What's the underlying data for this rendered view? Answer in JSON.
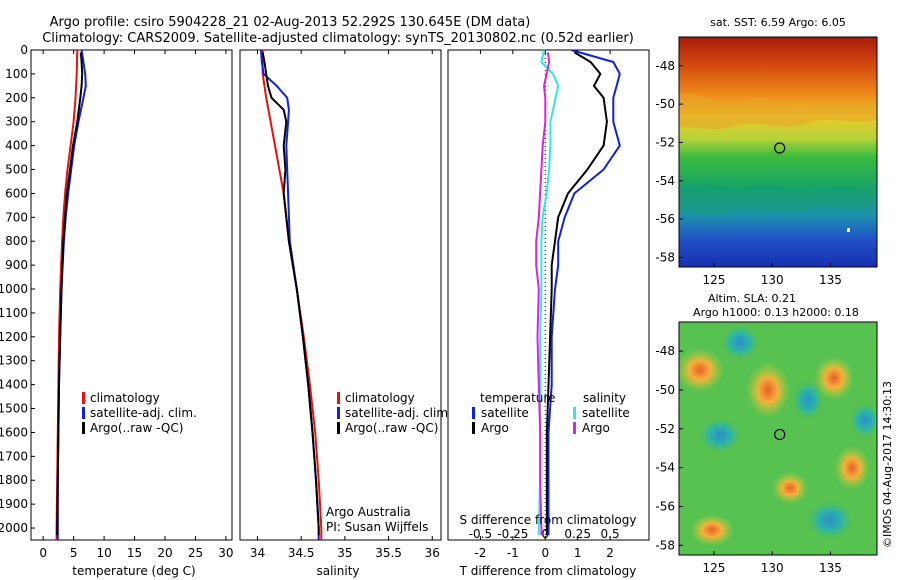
{
  "header": {
    "line1": "Argo profile: csiro 5904228_21 02-Aug-2013 52.292S 130.645E (DM data)",
    "line2": "Climatology: CARS2009. Satellite-adjusted climatology: synTS_20130802.nc (0.52d earlier)"
  },
  "colors": {
    "climatology": "#e8120c",
    "satellite": "#1020e0",
    "argo": "#000000",
    "satellite_salinity": "#2ee8e8",
    "argo_salinity": "#e020e0"
  },
  "chart_data": [
    {
      "type": "line",
      "xlabel": "temperature (deg C)",
      "ylabel": "",
      "xlim": [
        -2,
        31
      ],
      "ylim": [
        2050,
        0
      ],
      "xticks": [
        0,
        5,
        10,
        15,
        20,
        25,
        30
      ],
      "yticks": [
        0,
        100,
        200,
        300,
        400,
        500,
        600,
        700,
        800,
        900,
        1000,
        1100,
        1200,
        1300,
        1400,
        1500,
        1600,
        1700,
        1800,
        1900,
        2000
      ],
      "legend": [
        "climatology",
        "satellite-adj. clim.",
        "Argo(..raw -QC)"
      ],
      "series": [
        {
          "name": "climatology",
          "color": "#e8120c",
          "y": [
            0,
            100,
            200,
            300,
            400,
            500,
            600,
            700,
            800,
            1000,
            1200,
            1400,
            1600,
            1800,
            2000,
            2050
          ],
          "values": [
            5.6,
            5.5,
            5.3,
            5.0,
            4.5,
            4.0,
            3.6,
            3.3,
            3.1,
            2.8,
            2.6,
            2.5,
            2.4,
            2.3,
            2.2,
            2.2
          ]
        },
        {
          "name": "satellite-adj. clim.",
          "color": "#1020e0",
          "y": [
            0,
            50,
            100,
            150,
            200,
            300,
            400,
            500,
            600,
            700,
            800,
            1000,
            1200,
            1400,
            1600,
            1800,
            2000,
            2050
          ],
          "values": [
            6.3,
            6.6,
            6.9,
            7.0,
            6.6,
            5.8,
            5.1,
            4.6,
            4.1,
            3.7,
            3.4,
            3.0,
            2.8,
            2.6,
            2.5,
            2.4,
            2.4,
            2.4
          ]
        },
        {
          "name": "Argo(..raw -QC)",
          "color": "#000000",
          "y": [
            10,
            50,
            100,
            150,
            200,
            300,
            400,
            500,
            600,
            700,
            800,
            1000,
            1200,
            1400,
            1600,
            1800,
            2000,
            2030
          ],
          "values": [
            6.2,
            6.3,
            6.4,
            6.3,
            6.1,
            5.6,
            4.9,
            4.4,
            3.9,
            3.6,
            3.3,
            3.0,
            2.8,
            2.6,
            2.5,
            2.4,
            2.3,
            2.3
          ]
        }
      ]
    },
    {
      "type": "line",
      "xlabel": "salinity",
      "ylabel": "",
      "xlim": [
        33.8,
        36.1
      ],
      "ylim": [
        2050,
        0
      ],
      "xticks": [
        34,
        34.5,
        35,
        35.5,
        36
      ],
      "xticklabels": [
        "34",
        "34.5",
        "35",
        "35.5",
        "36"
      ],
      "legend": [
        "climatology",
        "satellite-adj. clim.",
        "Argo(..raw -QC)"
      ],
      "annotation": [
        "Argo Australia",
        "PI: Susan Wijffels"
      ],
      "series": [
        {
          "name": "climatology",
          "color": "#e8120c",
          "y": [
            0,
            100,
            200,
            300,
            400,
            600,
            800,
            1000,
            1200,
            1400,
            1600,
            1800,
            2000,
            2050
          ],
          "values": [
            34.06,
            34.06,
            34.1,
            34.15,
            34.2,
            34.3,
            34.36,
            34.45,
            34.53,
            34.6,
            34.66,
            34.7,
            34.73,
            34.73
          ]
        },
        {
          "name": "satellite-adj. clim.",
          "color": "#1020e0",
          "y": [
            0,
            50,
            100,
            150,
            200,
            250,
            300,
            400,
            600,
            800,
            1000,
            1200,
            1400,
            1600,
            1800,
            2000,
            2050
          ],
          "values": [
            34.04,
            34.05,
            34.07,
            34.22,
            34.34,
            34.36,
            34.35,
            34.33,
            34.35,
            34.37,
            34.45,
            34.52,
            34.58,
            34.63,
            34.67,
            34.7,
            34.7
          ]
        },
        {
          "name": "Argo(..raw -QC)",
          "color": "#000000",
          "y": [
            10,
            50,
            100,
            150,
            200,
            250,
            300,
            400,
            500,
            600,
            700,
            800,
            1000,
            1200,
            1400,
            1600,
            1800,
            2000,
            2030
          ],
          "values": [
            34.06,
            34.08,
            34.1,
            34.12,
            34.16,
            34.3,
            34.33,
            34.3,
            34.32,
            34.3,
            34.33,
            34.36,
            34.45,
            34.52,
            34.58,
            34.63,
            34.67,
            34.7,
            34.7
          ]
        }
      ]
    },
    {
      "type": "line",
      "xlabel": "T difference from climatology",
      "ylabel": "",
      "xlim": [
        -3,
        3.2
      ],
      "ylim": [
        2050,
        0
      ],
      "xticks": [
        -2,
        -1,
        0,
        1,
        2
      ],
      "top_axis_label": "S difference from climatology",
      "top_ticks": [
        "-0.5",
        "-0.25",
        "0",
        "0.25",
        "0.5"
      ],
      "legend_titles": [
        "temperature",
        "salinity"
      ],
      "legend": [
        "satellite",
        "Argo",
        "satellite",
        "Argo"
      ],
      "series": [
        {
          "name": "satellite",
          "group": "temperature",
          "color": "#1020e0",
          "y": [
            0,
            50,
            100,
            150,
            200,
            300,
            400,
            500,
            600,
            700,
            800,
            900,
            1000,
            1200,
            1400,
            1600,
            1800,
            2000,
            2030
          ],
          "values": [
            0.8,
            2.1,
            2.3,
            2.2,
            2.1,
            2.1,
            2.3,
            1.8,
            0.9,
            0.6,
            0.4,
            0.4,
            0.3,
            0.2,
            0.2,
            0.1,
            0.1,
            0.1,
            0.1
          ]
        },
        {
          "name": "Argo",
          "group": "temperature",
          "color": "#000000",
          "y": [
            10,
            50,
            100,
            150,
            200,
            300,
            400,
            500,
            600,
            700,
            800,
            900,
            1000,
            1200,
            1400,
            1600,
            1800,
            2000,
            2030
          ],
          "values": [
            0.9,
            1.4,
            1.7,
            1.5,
            1.8,
            1.9,
            1.8,
            1.3,
            0.7,
            0.4,
            0.3,
            0.2,
            0.2,
            0.15,
            0.1,
            0.05,
            0.05,
            0.05,
            0.05
          ]
        },
        {
          "name": "satellite",
          "group": "salinity",
          "color": "#2ee8e8",
          "y": [
            0,
            50,
            100,
            150,
            200,
            300,
            400,
            500,
            600,
            700,
            800,
            900,
            1000,
            1200,
            1400,
            1600,
            1800,
            2000,
            2030
          ],
          "values": [
            -0.01,
            -0.03,
            0.06,
            0.1,
            0.08,
            0.04,
            0.04,
            0.03,
            0.01,
            -0.02,
            -0.03,
            -0.03,
            -0.03,
            -0.04,
            -0.04,
            -0.04,
            -0.04,
            -0.05,
            -0.05
          ]
        },
        {
          "name": "Argo",
          "group": "salinity",
          "color": "#e020e0",
          "y": [
            10,
            50,
            100,
            150,
            200,
            300,
            400,
            500,
            600,
            700,
            800,
            900,
            1000,
            1200,
            1400,
            1600,
            1800,
            2000,
            2030
          ],
          "values": [
            0.02,
            0.03,
            0.01,
            -0.01,
            0.0,
            0.0,
            -0.02,
            -0.03,
            -0.04,
            -0.05,
            -0.07,
            -0.07,
            -0.05,
            -0.06,
            -0.05,
            -0.04,
            -0.04,
            -0.03,
            -0.03
          ]
        }
      ]
    },
    {
      "type": "heatmap",
      "title": "sat. SST: 6.59 Argo: 6.05",
      "xticks": [
        125,
        130,
        135
      ],
      "yticks": [
        -48,
        -50,
        -52,
        -54,
        -56,
        -58
      ],
      "xlim": [
        122,
        139
      ],
      "ylim": [
        -58.5,
        -46.5
      ],
      "marker": {
        "lon": 130.645,
        "lat": -52.292
      }
    },
    {
      "type": "heatmap",
      "title_line1": "Altim. SLA: 0.21",
      "title_line2": "Argo h1000: 0.13 h2000: 0.18",
      "xticks": [
        125,
        130,
        135
      ],
      "yticks": [
        -48,
        -50,
        -52,
        -54,
        -56,
        -58
      ],
      "xlim": [
        122,
        139
      ],
      "ylim": [
        -58.5,
        -46.5
      ],
      "marker": {
        "lon": 130.645,
        "lat": -52.292
      }
    }
  ],
  "credit": "©IMOS 04-Aug-2017 14:30:13"
}
